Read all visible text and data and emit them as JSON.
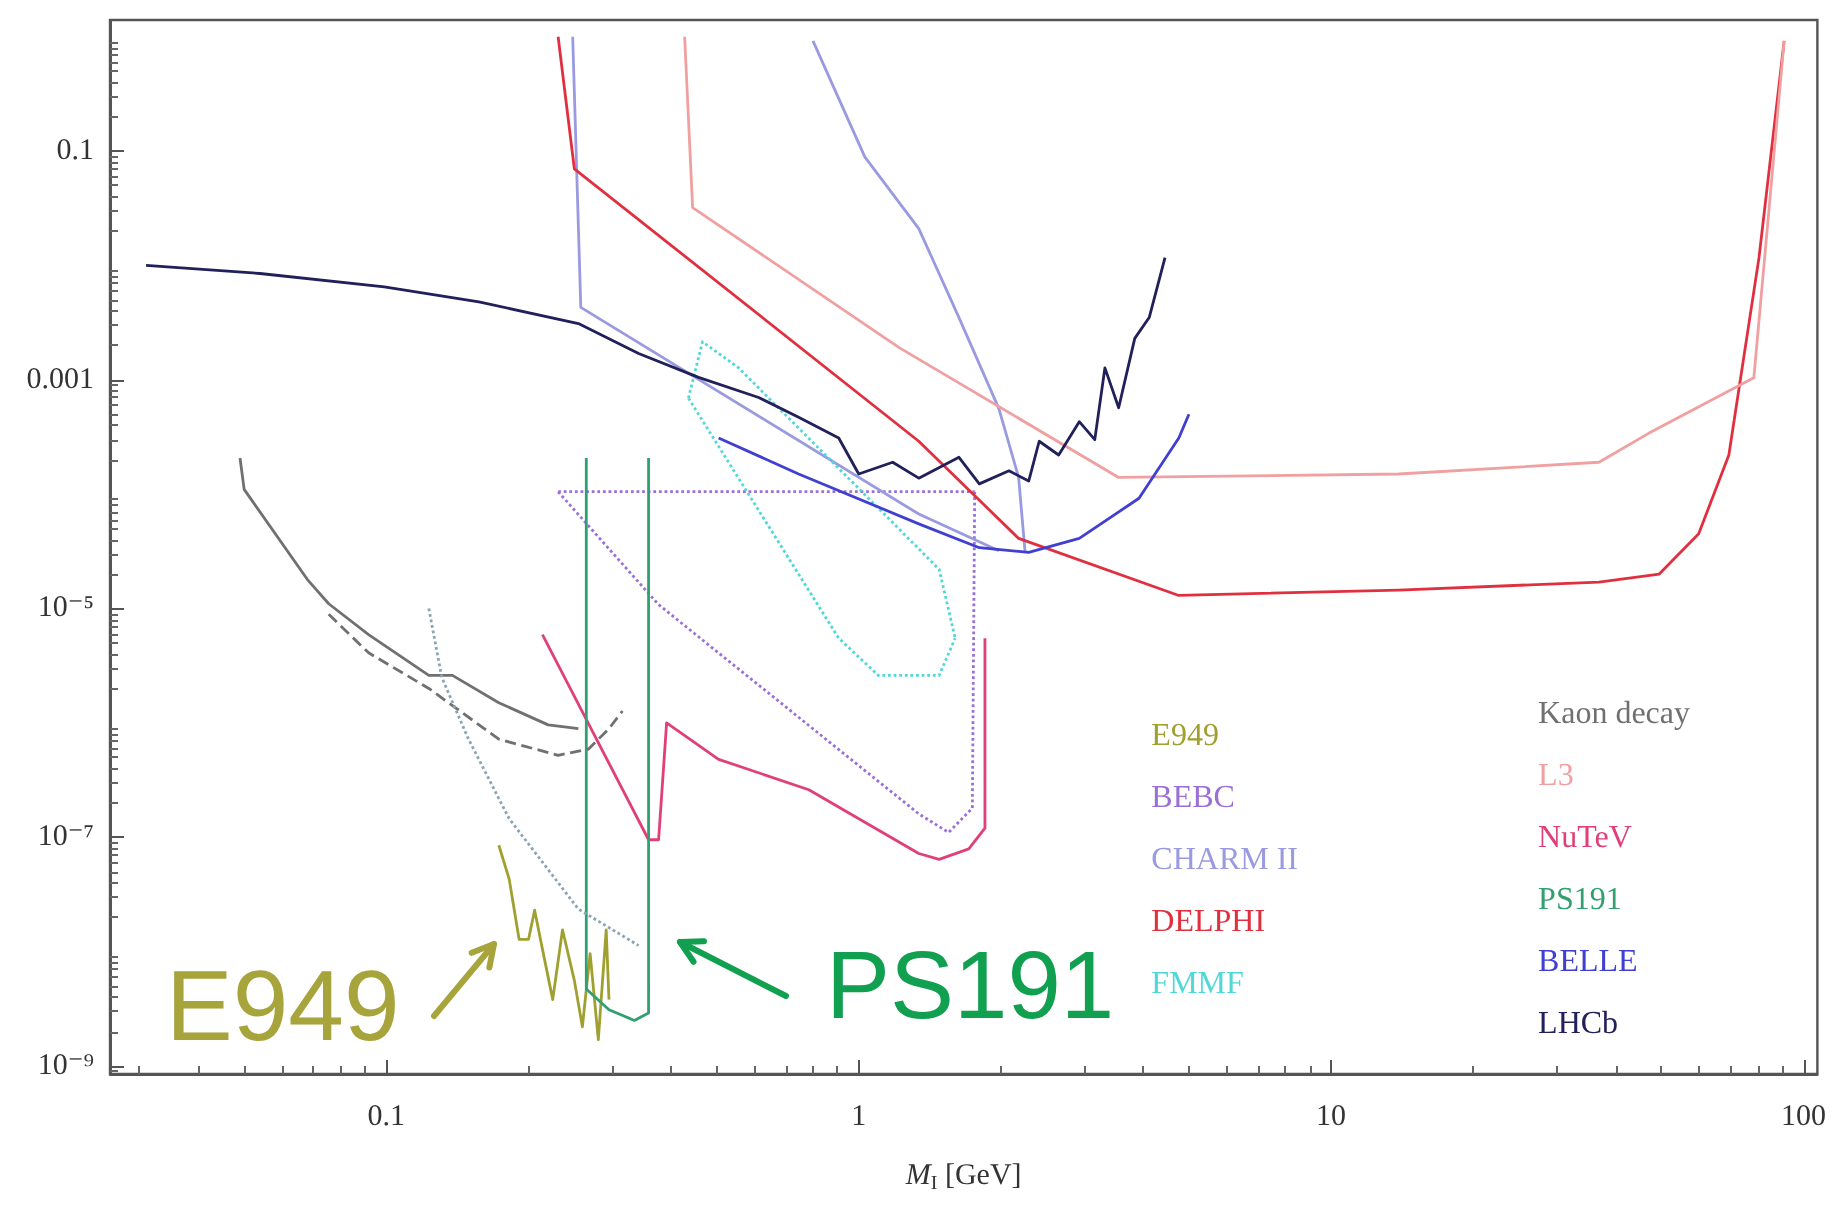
{
  "chart_data": {
    "type": "line",
    "xlabel": "M$_{I}$ [GeV]",
    "log": "xy",
    "grid": false,
    "legend": "bottom right",
    "xlim": [
      0.026,
      107
    ],
    "ylim": [
      8.5e-10,
      1.4
    ],
    "xticks": [
      0.1,
      1,
      10,
      100
    ],
    "yticks": [
      {
        "value": 1e-09,
        "label": "10⁻⁹"
      },
      {
        "value": 1e-07,
        "label": "10⁻⁷"
      },
      {
        "value": 1e-05,
        "label": "10⁻⁵"
      },
      0.001,
      0.1
    ],
    "annotations": [
      "E949",
      "PS191"
    ],
    "series": [
      {
        "name": "E949",
        "color": "#a0a030",
        "line_style": "solid",
        "x": [
          0.173,
          0.182,
          0.191,
          0.2,
          0.206,
          0.214,
          0.225,
          0.236,
          0.25,
          0.26,
          0.27,
          0.281,
          0.292,
          0.296
        ],
        "values": [
          8.5e-08,
          4.3e-08,
          1.28e-08,
          1.28e-08,
          2.3e-08,
          1.05e-08,
          3.8e-09,
          1.55e-08,
          5.6e-09,
          2.2e-09,
          9.6e-09,
          1.7e-09,
          1.55e-08,
          3.8e-09
        ]
      },
      {
        "name": "BEBC",
        "color": "#9a70d8",
        "line_style": "dotted",
        "x": [
          0.231,
          1.76,
          null,
          0.231,
          0.377,
          1.34,
          1.55,
          1.74,
          1.76
        ],
        "values": [
          0.000105,
          0.000105,
          null,
          0.000105,
          1.08e-05,
          1.6e-07,
          1.1e-07,
          1.8e-07,
          0.000105
        ]
      },
      {
        "name": "CHARM II",
        "color": "#9a9ae0",
        "line_style": "solid",
        "x": [
          0.248,
          0.258,
          1.34,
          1.98,
          null,
          0.8,
          1.03,
          1.34,
          1.63,
          1.98,
          2.18,
          2.25
        ],
        "values": [
          1.0,
          0.0043,
          6.7e-05,
          3.2e-05,
          null,
          0.92,
          0.089,
          0.021,
          0.0035,
          0.00056,
          0.00014,
          3.1e-05
        ]
      },
      {
        "name": "DELPHI",
        "color": "#e03040",
        "line_style": "solid",
        "x": [
          0.231,
          0.25,
          1.34,
          2.18,
          4.76,
          13.9,
          36.9,
          49.5,
          60,
          69.5,
          80.5,
          91
        ],
        "values": [
          1.0,
          0.07,
          0.00029,
          4.1e-05,
          1.3e-05,
          1.45e-05,
          1.7e-05,
          2e-05,
          4.5e-05,
          0.00022,
          0.0117,
          0.92
        ]
      },
      {
        "name": "FMMF",
        "color": "#50d8d8",
        "line_style": "dotted",
        "x": [
          0.436,
          0.467,
          0.557,
          1.48,
          1.6,
          null,
          0.436,
          0.907,
          1.1,
          1.48,
          1.6
        ],
        "values": [
          0.00069,
          0.00215,
          0.00127,
          2.2e-05,
          5.5e-06,
          null,
          0.00069,
          5.5e-06,
          2.6e-06,
          2.6e-06,
          5.5e-06
        ]
      },
      {
        "name": "Kaon decay",
        "color": "#707070",
        "line_style": "solid",
        "x": [
          0.049,
          0.05,
          0.068,
          0.0755,
          0.0917,
          0.123,
          0.138,
          0.173,
          0.22,
          0.255
        ],
        "values": [
          0.000207,
          0.00011,
          1.8e-05,
          1.1e-05,
          5.9e-06,
          2.6e-06,
          2.6e-06,
          1.5e-06,
          9.6e-07,
          8.9e-07
        ]
      },
      {
        "name": "L3",
        "color": "#f0a0a0",
        "line_style": "solid",
        "x": [
          0.428,
          0.445,
          1.22,
          3.55,
          13.9,
          36.9,
          47,
          78.5,
          91
        ],
        "values": [
          1.0,
          0.032,
          0.0019,
          0.00014,
          0.00015,
          0.00019,
          0.00034,
          0.00104,
          0.92
        ]
      },
      {
        "name": "NuTeV",
        "color": "#e0407a",
        "line_style": "solid",
        "x": [
          0.214,
          0.359,
          0.377,
          0.392,
          0.505,
          0.784,
          1.34,
          1.48,
          1.71,
          1.85,
          1.85
        ],
        "values": [
          5.9e-06,
          9.5e-08,
          9.5e-08,
          1e-06,
          4.8e-07,
          2.6e-07,
          7.2e-08,
          6.4e-08,
          7.9e-08,
          1.2e-07,
          5.5e-06
        ]
      },
      {
        "name": "PS191",
        "color": "#30a070",
        "line_style": "solid",
        "x": [
          0.265,
          0.265,
          0.296,
          0.335,
          0.359,
          0.359
        ],
        "values": [
          0.000207,
          4.7e-09,
          3.1e-09,
          2.5e-09,
          2.9e-09,
          0.000207
        ]
      },
      {
        "name": "BELLE",
        "color": "#4040d0",
        "line_style": "solid",
        "x": [
          0.505,
          0.746,
          1.34,
          1.8,
          2.29,
          2.93,
          3.92,
          4.76,
          5.0
        ],
        "values": [
          0.00031,
          0.00015,
          5.5e-05,
          3.4e-05,
          3.1e-05,
          4.1e-05,
          9.2e-05,
          0.00031,
          0.0005
        ]
      },
      {
        "name": "LHCb",
        "color": "#20205a",
        "line_style": "solid",
        "x": [
          0.031,
          0.054,
          0.099,
          0.157,
          0.255,
          0.342,
          0.458,
          0.614,
          0.746,
          0.907,
          1.0,
          1.18,
          1.34,
          1.63,
          1.8,
          2.08,
          2.29,
          2.41,
          2.65,
          2.93,
          3.16,
          3.32,
          3.55,
          3.84,
          4.12,
          4.45
        ],
        "values": [
          0.01,
          0.0085,
          0.0065,
          0.0048,
          0.0031,
          0.0017,
          0.00105,
          0.0007,
          0.00047,
          0.00031,
          0.00015,
          0.00019,
          0.000138,
          0.00021,
          0.000123,
          0.00016,
          0.00013,
          0.00029,
          0.00022,
          0.00043,
          0.0003,
          0.00127,
          0.00057,
          0.0023,
          0.0035,
          0.0117
        ]
      },
      {
        "color": "#707070",
        "line_style": "dashed",
        "x": [
          0.0755,
          0.0917,
          0.123,
          0.173,
          0.231,
          0.268,
          0.296,
          0.316
        ],
        "values": [
          8.9e-06,
          4.1e-06,
          2e-06,
          7.2e-07,
          5.2e-07,
          5.9e-07,
          8.9e-07,
          1.27e-06
        ]
      },
      {
        "color": "#8aa4b4",
        "line_style": "dotted",
        "x": [
          0.123,
          0.131,
          0.149,
          0.182,
          0.255,
          0.342
        ],
        "values": [
          1e-05,
          2.5e-06,
          7.3e-07,
          1.45e-07,
          2.35e-08,
          1.13e-08
        ]
      }
    ]
  }
}
